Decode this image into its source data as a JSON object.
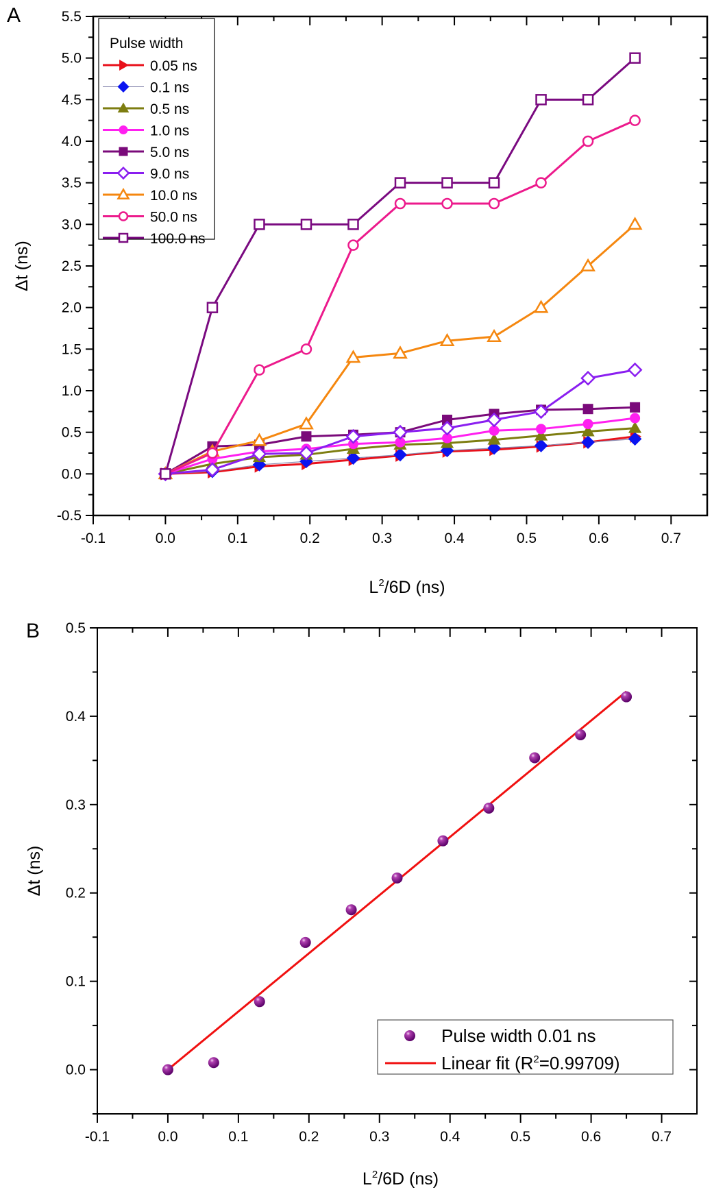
{
  "chart_data": [
    {
      "panel": "A",
      "type": "line",
      "title": "",
      "xlabel": "L²/6D (ns)",
      "xlabel_main": "L",
      "xlabel_sup": "2",
      "xlabel_rest": "/6D (ns)",
      "ylabel": "Δt (ns)",
      "xlim": [
        -0.1,
        0.75
      ],
      "ylim": [
        -0.5,
        5.5
      ],
      "xticks": [
        -0.1,
        0.0,
        0.1,
        0.2,
        0.3,
        0.4,
        0.5,
        0.6,
        0.7
      ],
      "xtick_labels": [
        "-0.1",
        "0.0",
        "0.1",
        "0.2",
        "0.3",
        "0.4",
        "0.5",
        "0.6",
        "0.7"
      ],
      "yticks": [
        -0.5,
        0.0,
        0.5,
        1.0,
        1.5,
        2.0,
        2.5,
        3.0,
        3.5,
        4.0,
        4.5,
        5.0,
        5.5
      ],
      "ytick_labels": [
        "-0.5",
        "0.0",
        "0.5",
        "1.0",
        "1.5",
        "2.0",
        "2.5",
        "3.0",
        "3.5",
        "4.0",
        "4.5",
        "5.0",
        "5.5"
      ],
      "grid": false,
      "legend_title": "Pulse width",
      "legend_position": "top-left",
      "x": [
        0.0,
        0.065,
        0.13,
        0.195,
        0.26,
        0.325,
        0.39,
        0.455,
        0.52,
        0.585,
        0.65
      ],
      "series": [
        {
          "name": "0.05 ns",
          "color": "#e8101a",
          "marker": "triangle-right",
          "filled": true,
          "values": [
            0.0,
            0.02,
            0.09,
            0.12,
            0.17,
            0.22,
            0.27,
            0.29,
            0.33,
            0.38,
            0.45
          ]
        },
        {
          "name": "0.1  ns",
          "color": "#0a14f0",
          "line_color": "#8a8ab0",
          "marker": "diamond",
          "filled": true,
          "values": [
            0.0,
            0.03,
            0.11,
            0.15,
            0.19,
            0.23,
            0.28,
            0.31,
            0.34,
            0.38,
            0.42
          ]
        },
        {
          "name": "0.5  ns",
          "color": "#7d7d10",
          "marker": "triangle-up",
          "filled": true,
          "values": [
            0.0,
            0.12,
            0.2,
            0.23,
            0.3,
            0.35,
            0.37,
            0.41,
            0.46,
            0.51,
            0.55
          ]
        },
        {
          "name": "1.0  ns",
          "color": "#ff20f0",
          "marker": "circle",
          "filled": true,
          "values": [
            0.0,
            0.18,
            0.27,
            0.3,
            0.36,
            0.38,
            0.43,
            0.52,
            0.54,
            0.6,
            0.67
          ]
        },
        {
          "name": "5.0  ns",
          "color": "#7a0a7a",
          "marker": "square",
          "filled": true,
          "values": [
            0.0,
            0.33,
            0.35,
            0.45,
            0.47,
            0.5,
            0.65,
            0.72,
            0.77,
            0.78,
            0.8
          ]
        },
        {
          "name": "9.0  ns",
          "color": "#8a1ef0",
          "marker": "diamond",
          "filled": false,
          "values": [
            0.0,
            0.05,
            0.24,
            0.25,
            0.45,
            0.5,
            0.55,
            0.65,
            0.75,
            1.15,
            1.25
          ]
        },
        {
          "name": "10.0 ns",
          "color": "#f5870f",
          "marker": "triangle-up",
          "filled": false,
          "values": [
            0.0,
            0.27,
            0.4,
            0.6,
            1.4,
            1.45,
            1.6,
            1.65,
            2.0,
            2.5,
            3.0
          ]
        },
        {
          "name": "50.0 ns",
          "color": "#ec1a8c",
          "marker": "circle",
          "filled": false,
          "values": [
            0.0,
            0.25,
            1.25,
            1.5,
            2.75,
            3.25,
            3.25,
            3.25,
            3.5,
            4.0,
            4.25
          ]
        },
        {
          "name": "100.0 ns",
          "color": "#7a0a80",
          "marker": "square",
          "filled": false,
          "values": [
            0.0,
            2.0,
            3.0,
            3.0,
            3.0,
            3.5,
            3.5,
            3.5,
            4.5,
            4.5,
            5.0
          ]
        }
      ]
    },
    {
      "panel": "B",
      "type": "scatter",
      "title": "",
      "xlabel": "L²/6D (ns)",
      "xlabel_main": "L",
      "xlabel_sup": "2",
      "xlabel_rest": "/6D (ns)",
      "ylabel": "Δt (ns)",
      "xlim": [
        -0.1,
        0.75
      ],
      "ylim": [
        -0.05,
        0.5
      ],
      "xticks": [
        -0.1,
        0.0,
        0.1,
        0.2,
        0.3,
        0.4,
        0.5,
        0.6,
        0.7
      ],
      "xtick_labels": [
        "-0.1",
        "0.0",
        "0.1",
        "0.2",
        "0.3",
        "0.4",
        "0.5",
        "0.6",
        "0.7"
      ],
      "yticks": [
        0.0,
        0.1,
        0.2,
        0.3,
        0.4,
        0.5
      ],
      "ytick_labels": [
        "0.0",
        "0.1",
        "0.2",
        "0.3",
        "0.4",
        "0.5"
      ],
      "minor_yticks": [
        -0.05,
        0.05,
        0.15,
        0.25,
        0.35,
        0.45
      ],
      "grid": false,
      "legend_position": "bottom-right",
      "series": [
        {
          "name": "Pulse width 0.01 ns",
          "type": "scatter",
          "color": "#7a0a8a",
          "marker": "sphere",
          "x": [
            0.0,
            0.065,
            0.13,
            0.195,
            0.26,
            0.325,
            0.39,
            0.455,
            0.52,
            0.585,
            0.65
          ],
          "values": [
            0.0,
            0.008,
            0.077,
            0.144,
            0.181,
            0.217,
            0.259,
            0.296,
            0.353,
            0.379,
            0.422
          ]
        },
        {
          "name": "Linear fit (R²=0.99709)",
          "name_main": "Linear fit (R",
          "name_sup": "2",
          "name_rest": "=0.99709)",
          "type": "line",
          "color": "#f01010",
          "x": [
            0.0,
            0.65
          ],
          "values": [
            0.0,
            0.428
          ]
        }
      ]
    }
  ]
}
